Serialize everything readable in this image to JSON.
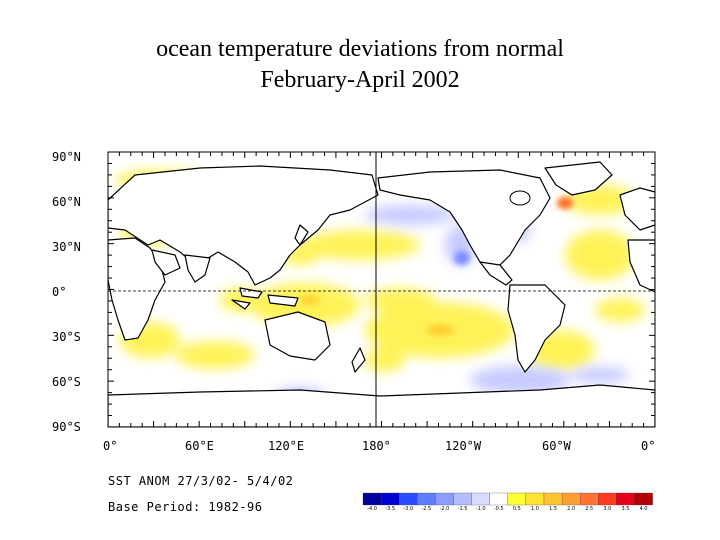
{
  "title": {
    "line1": "ocean temperature deviations from normal",
    "line2": "February-April 2002"
  },
  "map": {
    "lat_labels": [
      "90°N",
      "60°N",
      "30°N",
      "0°",
      "30°S",
      "60°S",
      "90°S"
    ],
    "lon_labels": [
      "0°",
      "60°E",
      "120°E",
      "180°",
      "120°W",
      "60°W",
      "0°"
    ],
    "equator_style": "dashed",
    "date_line_style": "solid"
  },
  "footer": {
    "line1": "SST ANOM 27/3/02- 5/4/02",
    "line2": "Base Period: 1982-96"
  },
  "colorbar": {
    "colors": [
      "#00009a",
      "#0000d2",
      "#2a4bff",
      "#5f7dff",
      "#8f9cff",
      "#b6bdff",
      "#d7dcff",
      "#ffffff",
      "#ffff33",
      "#ffe233",
      "#ffc233",
      "#ff9f33",
      "#ff7233",
      "#ff3b1d",
      "#e6001a",
      "#b30000"
    ],
    "labels": [
      "-4.0",
      "-3.5",
      "-3.0",
      "-2.5",
      "-2.0",
      "-1.5",
      "-1.0",
      "-0.5",
      "0.5",
      "1.0",
      "1.5",
      "2.0",
      "2.5",
      "3.0",
      "3.5",
      "4.0"
    ]
  }
}
